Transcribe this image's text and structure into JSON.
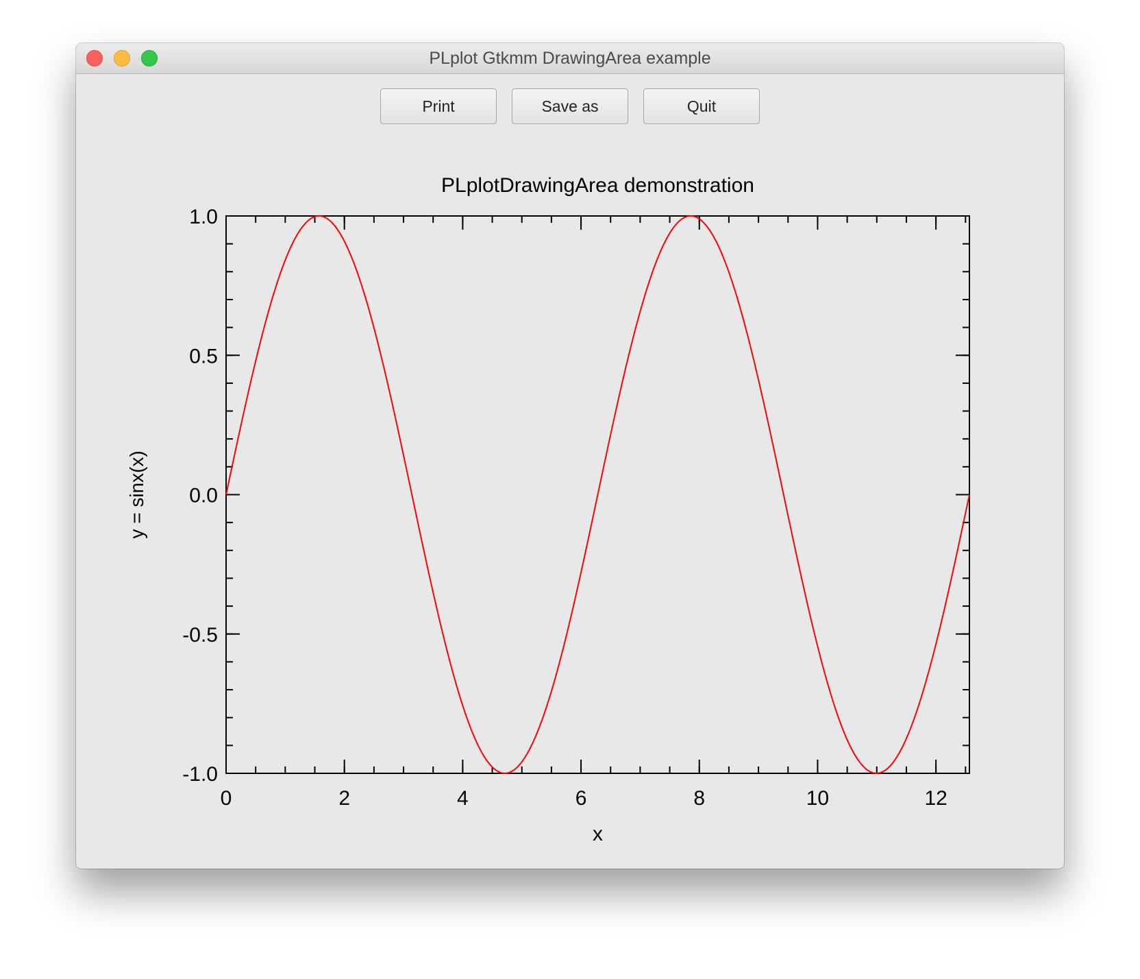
{
  "window": {
    "title": "PLplot Gtkmm DrawingArea example"
  },
  "toolbar": {
    "print_label": "Print",
    "save_as_label": "Save as",
    "quit_label": "Quit"
  },
  "colors": {
    "series": "#ff0000",
    "window_background": "#e8e8e8"
  },
  "chart_data": {
    "type": "line",
    "title": "PLplotDrawingArea demonstration",
    "xlabel": "x",
    "ylabel": "y = sinx(x)",
    "xlim": [
      0,
      12.566
    ],
    "ylim": [
      -1.0,
      1.0
    ],
    "x_ticks": [
      0,
      2,
      4,
      6,
      8,
      10,
      12
    ],
    "x_tick_labels": [
      "0",
      "2",
      "4",
      "6",
      "8",
      "10",
      "12"
    ],
    "y_ticks": [
      -1.0,
      -0.5,
      0.0,
      0.5,
      1.0
    ],
    "y_tick_labels": [
      "-1.0",
      "-0.5",
      "0.0",
      "0.5",
      "1.0"
    ],
    "x_minor_step": 0.5,
    "y_minor_step": 0.1,
    "grid": false,
    "series": [
      {
        "function": "sin(x)",
        "x": [
          0,
          0.5,
          1.0,
          1.5708,
          2.0,
          2.5,
          3.0,
          3.1416,
          3.5,
          4.0,
          4.7124,
          5.0,
          5.5,
          6.0,
          6.2832,
          6.5,
          7.0,
          7.854,
          8.5,
          9.0,
          9.4248,
          10.0,
          10.5,
          10.9956,
          11.5,
          12.0,
          12.566
        ],
        "y": [
          0.0,
          0.479,
          0.841,
          1.0,
          0.909,
          0.598,
          0.141,
          0.0,
          -0.351,
          -0.757,
          -1.0,
          -0.959,
          -0.706,
          -0.279,
          0.0,
          0.215,
          0.657,
          1.0,
          0.798,
          0.412,
          0.0,
          -0.544,
          -0.88,
          -1.0,
          -0.875,
          -0.537,
          0.0
        ]
      }
    ]
  }
}
